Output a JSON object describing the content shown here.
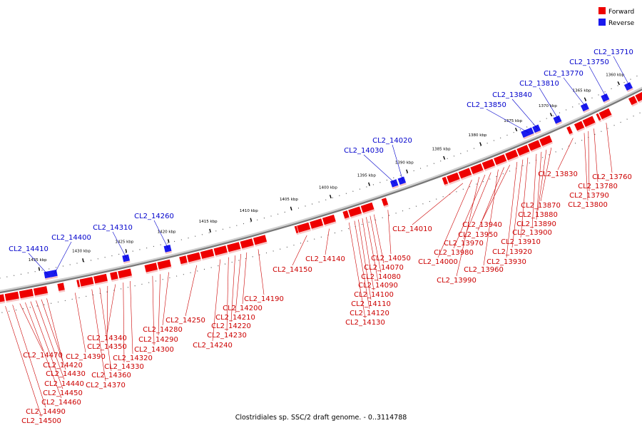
{
  "legend": [
    {
      "label": "Forward",
      "color": "#ee0000"
    },
    {
      "label": "Reverse",
      "color": "#0000ee"
    }
  ],
  "caption": "Clostridiales sp. SSC/2 draft genome. - 0..3114788",
  "colors": {
    "forward": "#ee0000",
    "reverse": "#1a1aee",
    "backbone": "#777777"
  },
  "scale": {
    "unit": "kbp",
    "ticks": [
      {
        "label": "1360 kbp",
        "kbp": 1360
      },
      {
        "label": "1365 kbp",
        "kbp": 1365
      },
      {
        "label": "1370 kbp",
        "kbp": 1370
      },
      {
        "label": "1375 kbp",
        "kbp": 1375
      },
      {
        "label": "1380 kbp",
        "kbp": 1380
      },
      {
        "label": "1385 kbp",
        "kbp": 1385
      },
      {
        "label": "1390 kbp",
        "kbp": 1390
      },
      {
        "label": "1395 kbp",
        "kbp": 1395
      },
      {
        "label": "1400 kbp",
        "kbp": 1400
      },
      {
        "label": "1405 kbp",
        "kbp": 1405
      },
      {
        "label": "1410 kbp",
        "kbp": 1410
      },
      {
        "label": "1415 kbp",
        "kbp": 1415
      },
      {
        "label": "1420 kbp",
        "kbp": 1420
      },
      {
        "label": "1425 kbp",
        "kbp": 1425
      },
      {
        "label": "1430 kbp",
        "kbp": 1430
      },
      {
        "label": "1435 kbp",
        "kbp": 1435
      }
    ]
  },
  "reverse_genes": [
    {
      "name": "CL2_13710",
      "kbp": 1359.0
    },
    {
      "name": "CL2_13750",
      "kbp": 1362.5
    },
    {
      "name": "CL2_13770",
      "kbp": 1365.5
    },
    {
      "name": "CL2_13810",
      "kbp": 1369.5
    },
    {
      "name": "CL2_13840",
      "kbp": 1372.5
    },
    {
      "name": "CL2_13850",
      "kbp": 1373.8
    },
    {
      "name": "CL2_14020",
      "kbp": 1391.0
    },
    {
      "name": "CL2_14030",
      "kbp": 1392.0
    },
    {
      "name": "CL2_14260",
      "kbp": 1420.3
    },
    {
      "name": "CL2_14310",
      "kbp": 1425.2
    },
    {
      "name": "CL2_14400",
      "kbp": 1433.5
    },
    {
      "name": "CL2_14410",
      "kbp": 1434.2
    }
  ],
  "forward_genes": [
    {
      "name": "CL2_13760",
      "kbp": 1363.8
    },
    {
      "name": "CL2_13780",
      "kbp": 1365.6
    },
    {
      "name": "CL2_13790",
      "kbp": 1366.4
    },
    {
      "name": "CL2_13800",
      "kbp": 1367.0
    },
    {
      "name": "CL2_13830",
      "kbp": 1368.6
    },
    {
      "name": "CL2_13870",
      "kbp": 1371.7
    },
    {
      "name": "CL2_13880",
      "kbp": 1372.4
    },
    {
      "name": "CL2_13890",
      "kbp": 1373.1
    },
    {
      "name": "CL2_13900",
      "kbp": 1373.8
    },
    {
      "name": "CL2_13910",
      "kbp": 1375.0
    },
    {
      "name": "CL2_13920",
      "kbp": 1375.7
    },
    {
      "name": "CL2_13930",
      "kbp": 1376.5
    },
    {
      "name": "CL2_13940",
      "kbp": 1377.5
    },
    {
      "name": "CL2_13950",
      "kbp": 1378.3
    },
    {
      "name": "CL2_13960",
      "kbp": 1379.1
    },
    {
      "name": "CL2_13970",
      "kbp": 1380.1
    },
    {
      "name": "CL2_13980",
      "kbp": 1380.9
    },
    {
      "name": "CL2_13990",
      "kbp": 1381.7
    },
    {
      "name": "CL2_14000",
      "kbp": 1382.7
    },
    {
      "name": "CL2_14010",
      "kbp": 1383.9
    },
    {
      "name": "CL2_14050",
      "kbp": 1393.8
    },
    {
      "name": "CL2_14070",
      "kbp": 1395.6
    },
    {
      "name": "CL2_14080",
      "kbp": 1396.1
    },
    {
      "name": "CL2_14090",
      "kbp": 1396.6
    },
    {
      "name": "CL2_14100",
      "kbp": 1397.1
    },
    {
      "name": "CL2_14110",
      "kbp": 1397.6
    },
    {
      "name": "CL2_14120",
      "kbp": 1398.1
    },
    {
      "name": "CL2_14130",
      "kbp": 1398.8
    },
    {
      "name": "CL2_14140",
      "kbp": 1401.3
    },
    {
      "name": "CL2_14150",
      "kbp": 1404.1
    },
    {
      "name": "CL2_14190",
      "kbp": 1410.1
    },
    {
      "name": "CL2_14200",
      "kbp": 1411.5
    },
    {
      "name": "CL2_14210",
      "kbp": 1412.2
    },
    {
      "name": "CL2_14220",
      "kbp": 1412.9
    },
    {
      "name": "CL2_14230",
      "kbp": 1413.7
    },
    {
      "name": "CL2_14240",
      "kbp": 1414.7
    },
    {
      "name": "CL2_14250",
      "kbp": 1417.5
    },
    {
      "name": "CL2_14280",
      "kbp": 1420.8
    },
    {
      "name": "CL2_14290",
      "kbp": 1421.8
    },
    {
      "name": "CL2_14300",
      "kbp": 1422.7
    },
    {
      "name": "CL2_14320",
      "kbp": 1425.3
    },
    {
      "name": "CL2_14330",
      "kbp": 1426.1
    },
    {
      "name": "CL2_14340",
      "kbp": 1427.0
    },
    {
      "name": "CL2_14350",
      "kbp": 1427.9
    },
    {
      "name": "CL2_14360",
      "kbp": 1428.8
    },
    {
      "name": "CL2_14370",
      "kbp": 1429.7
    },
    {
      "name": "CL2_14390",
      "kbp": 1431.6
    },
    {
      "name": "CL2_14420",
      "kbp": 1434.8
    },
    {
      "name": "CL2_14430",
      "kbp": 1435.4
    },
    {
      "name": "CL2_14440",
      "kbp": 1436.0
    },
    {
      "name": "CL2_14450",
      "kbp": 1436.6
    },
    {
      "name": "CL2_14460",
      "kbp": 1437.2
    },
    {
      "name": "CL2_14470",
      "kbp": 1437.8
    },
    {
      "name": "CL2_14490",
      "kbp": 1438.6
    },
    {
      "name": "CL2_14500",
      "kbp": 1439.4
    }
  ]
}
